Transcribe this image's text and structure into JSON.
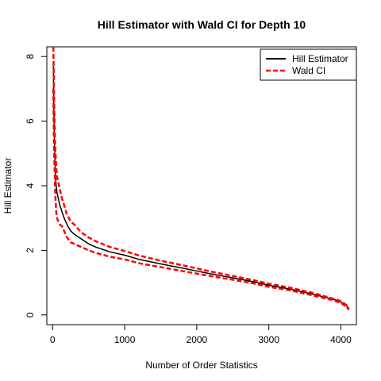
{
  "chart_data": {
    "type": "line",
    "title": "Hill Estimator with Wald CI for Depth 10",
    "xlabel": "Number of Order Statistics",
    "ylabel": "Hill Estimator",
    "xlim": [
      -80,
      4215
    ],
    "ylim": [
      -0.3,
      8.3
    ],
    "x_ticks": [
      0,
      1000,
      2000,
      3000,
      4000
    ],
    "y_ticks": [
      0,
      2,
      4,
      6,
      8
    ],
    "grid": false,
    "legend_position": "top-right",
    "colors": {
      "estimator": "#000000",
      "ci": "#ff0000"
    },
    "series": [
      {
        "name": "Hill Estimator",
        "style": "solid",
        "points": [
          [
            10,
            7.7
          ],
          [
            15,
            6.8
          ],
          [
            20,
            6.0
          ],
          [
            25,
            5.4
          ],
          [
            30,
            5.1
          ],
          [
            35,
            4.6
          ],
          [
            40,
            4.3
          ],
          [
            50,
            4.0
          ],
          [
            60,
            3.8
          ],
          [
            80,
            3.6
          ],
          [
            100,
            3.4
          ],
          [
            130,
            3.2
          ],
          [
            160,
            3.0
          ],
          [
            200,
            2.8
          ],
          [
            250,
            2.6
          ],
          [
            300,
            2.5
          ],
          [
            400,
            2.35
          ],
          [
            500,
            2.2
          ],
          [
            600,
            2.1
          ],
          [
            800,
            1.95
          ],
          [
            1000,
            1.85
          ],
          [
            1200,
            1.72
          ],
          [
            1500,
            1.58
          ],
          [
            1800,
            1.45
          ],
          [
            2000,
            1.36
          ],
          [
            2200,
            1.27
          ],
          [
            2500,
            1.15
          ],
          [
            2800,
            1.02
          ],
          [
            3000,
            0.92
          ],
          [
            3300,
            0.8
          ],
          [
            3600,
            0.65
          ],
          [
            3900,
            0.48
          ],
          [
            4000,
            0.4
          ],
          [
            4080,
            0.28
          ],
          [
            4110,
            0.18
          ]
        ]
      },
      {
        "name": "Wald CI",
        "style": "dashed",
        "bound": "upper",
        "points": [
          [
            10,
            8.3
          ],
          [
            15,
            7.6
          ],
          [
            20,
            6.8
          ],
          [
            25,
            6.2
          ],
          [
            30,
            5.7
          ],
          [
            35,
            5.3
          ],
          [
            40,
            5.0
          ],
          [
            50,
            4.6
          ],
          [
            60,
            4.3
          ],
          [
            80,
            4.1
          ],
          [
            100,
            3.9
          ],
          [
            130,
            3.6
          ],
          [
            160,
            3.4
          ],
          [
            200,
            3.1
          ],
          [
            250,
            2.9
          ],
          [
            300,
            2.8
          ],
          [
            400,
            2.55
          ],
          [
            500,
            2.4
          ],
          [
            600,
            2.28
          ],
          [
            800,
            2.1
          ],
          [
            1000,
            1.98
          ],
          [
            1200,
            1.84
          ],
          [
            1500,
            1.68
          ],
          [
            1800,
            1.54
          ],
          [
            2000,
            1.44
          ],
          [
            2200,
            1.34
          ],
          [
            2500,
            1.21
          ],
          [
            2800,
            1.07
          ],
          [
            3000,
            0.97
          ],
          [
            3300,
            0.84
          ],
          [
            3600,
            0.69
          ],
          [
            3900,
            0.5
          ],
          [
            4000,
            0.43
          ],
          [
            4080,
            0.3
          ],
          [
            4110,
            0.2
          ]
        ]
      },
      {
        "name": "Wald CI",
        "style": "dashed",
        "bound": "lower",
        "points": [
          [
            10,
            7.0
          ],
          [
            15,
            6.0
          ],
          [
            20,
            5.2
          ],
          [
            25,
            4.7
          ],
          [
            30,
            4.4
          ],
          [
            35,
            3.9
          ],
          [
            40,
            3.6
          ],
          [
            50,
            3.2
          ],
          [
            60,
            3.0
          ],
          [
            80,
            2.9
          ],
          [
            100,
            2.8
          ],
          [
            130,
            2.75
          ],
          [
            160,
            2.6
          ],
          [
            200,
            2.4
          ],
          [
            250,
            2.25
          ],
          [
            300,
            2.2
          ],
          [
            400,
            2.1
          ],
          [
            500,
            2.0
          ],
          [
            600,
            1.92
          ],
          [
            800,
            1.8
          ],
          [
            1000,
            1.72
          ],
          [
            1200,
            1.6
          ],
          [
            1500,
            1.48
          ],
          [
            1800,
            1.36
          ],
          [
            2000,
            1.28
          ],
          [
            2200,
            1.2
          ],
          [
            2500,
            1.09
          ],
          [
            2800,
            0.97
          ],
          [
            3000,
            0.87
          ],
          [
            3300,
            0.76
          ],
          [
            3600,
            0.61
          ],
          [
            3900,
            0.45
          ],
          [
            4000,
            0.37
          ],
          [
            4080,
            0.25
          ],
          [
            4110,
            0.16
          ]
        ]
      }
    ]
  }
}
